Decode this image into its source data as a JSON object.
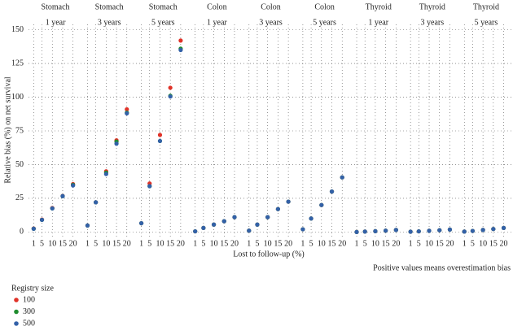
{
  "chart_data": {
    "type": "scatter",
    "y_label": "Relative bias (%) on net survival",
    "x_label": "Lost to follow-up (%)",
    "note": "Positive values means overestimation bias",
    "legend_title": "Registry size",
    "series": [
      {
        "name": "100",
        "color": "#e03228"
      },
      {
        "name": "300",
        "color": "#1e8c2e"
      },
      {
        "name": "500",
        "color": "#3361a8"
      }
    ],
    "xticks": [
      1,
      5,
      10,
      15,
      20
    ],
    "xlim": [
      -1.5,
      24.5
    ],
    "ylim": [
      -4,
      154
    ],
    "yticks": [
      0,
      25,
      50,
      75,
      100,
      125,
      150
    ],
    "grid": true,
    "panels": [
      {
        "cancer": "Stomach",
        "period": "1 year",
        "values": [
          [
            2.6,
            9.2,
            17.8,
            26.8,
            35.5
          ],
          [
            2.4,
            9,
            17.5,
            26.6,
            35
          ],
          [
            2.4,
            9,
            17.5,
            26.6,
            34.5
          ]
        ]
      },
      {
        "cancer": "Stomach",
        "period": "3 years",
        "values": [
          [
            4.8,
            22,
            45,
            68,
            91
          ],
          [
            4.8,
            22,
            44,
            67,
            88.5
          ],
          [
            4.8,
            22,
            43,
            65.5,
            88
          ]
        ]
      },
      {
        "cancer": "Stomach",
        "period": "5 years",
        "values": [
          [
            6.5,
            36,
            72,
            107,
            142
          ],
          [
            6.5,
            34,
            67.5,
            101,
            136
          ],
          [
            6.5,
            34,
            67.5,
            100.5,
            135
          ]
        ]
      },
      {
        "cancer": "Colon",
        "period": "1 year",
        "values": [
          [
            0.5,
            3,
            5.5,
            8,
            11
          ],
          [
            0.5,
            3,
            5.5,
            8,
            11
          ],
          [
            0.5,
            3,
            5.5,
            8,
            11
          ]
        ]
      },
      {
        "cancer": "Colon",
        "period": "3 years",
        "values": [
          [
            1,
            5.5,
            11,
            17,
            22.5
          ],
          [
            1,
            5.5,
            11,
            17,
            22.5
          ],
          [
            1,
            5.5,
            11,
            17,
            22.5
          ]
        ]
      },
      {
        "cancer": "Colon",
        "period": "5 years",
        "values": [
          [
            2,
            10,
            20,
            30,
            40.5
          ],
          [
            2,
            10,
            20,
            30,
            40.5
          ],
          [
            2,
            10,
            20,
            30,
            40.5
          ]
        ]
      },
      {
        "cancer": "Thyroid",
        "period": "1 year",
        "values": [
          [
            0,
            0.3,
            0.6,
            1,
            1.5
          ],
          [
            0,
            0.3,
            0.6,
            1,
            1.5
          ],
          [
            0,
            0.3,
            0.6,
            1,
            1.5
          ]
        ]
      },
      {
        "cancer": "Thyroid",
        "period": "3 years",
        "values": [
          [
            0.2,
            0.5,
            0.9,
            1.3,
            1.8
          ],
          [
            0.2,
            0.5,
            0.9,
            1.3,
            1.8
          ],
          [
            0.2,
            0.5,
            0.9,
            1.3,
            1.8
          ]
        ]
      },
      {
        "cancer": "Thyroid",
        "period": "5 years",
        "values": [
          [
            0.3,
            0.8,
            1.5,
            2.2,
            3
          ],
          [
            0.3,
            0.8,
            1.5,
            2.2,
            3
          ],
          [
            0.3,
            0.8,
            1.5,
            2.2,
            3
          ]
        ]
      }
    ]
  }
}
